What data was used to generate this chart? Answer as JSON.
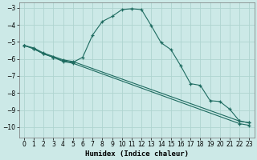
{
  "xlabel": "Humidex (Indice chaleur)",
  "background_color": "#cce9e7",
  "grid_color": "#afd4d0",
  "line_color": "#1e6b60",
  "xlim": [
    -0.5,
    23.5
  ],
  "ylim": [
    -10.6,
    -2.7
  ],
  "xticks": [
    0,
    1,
    2,
    3,
    4,
    5,
    6,
    7,
    8,
    9,
    10,
    11,
    12,
    13,
    14,
    15,
    16,
    17,
    18,
    19,
    20,
    21,
    22,
    23
  ],
  "yticks": [
    -10,
    -9,
    -8,
    -7,
    -6,
    -5,
    -4,
    -3
  ],
  "line1_x": [
    0,
    1,
    2,
    3,
    4,
    5,
    6,
    7,
    8,
    9,
    10,
    11,
    12,
    13,
    14,
    15,
    16,
    17,
    18,
    19,
    20,
    21,
    22,
    23
  ],
  "line1_y": [
    -5.2,
    -5.4,
    -5.7,
    -5.9,
    -6.1,
    -6.2,
    -5.9,
    -4.6,
    -3.8,
    -3.5,
    -3.1,
    -3.05,
    -3.1,
    -4.05,
    -5.05,
    -5.45,
    -6.4,
    -7.45,
    -7.55,
    -8.45,
    -8.5,
    -8.95,
    -9.65,
    -9.75
  ],
  "line2_x": [
    0,
    1,
    2,
    3,
    4,
    5,
    22,
    23
  ],
  "line2_y": [
    -5.2,
    -5.35,
    -5.65,
    -5.85,
    -6.05,
    -6.15,
    -9.65,
    -9.75
  ],
  "line3_x": [
    0,
    1,
    2,
    3,
    4,
    5,
    22,
    23
  ],
  "line3_y": [
    -5.2,
    -5.4,
    -5.7,
    -5.9,
    -6.15,
    -6.25,
    -9.8,
    -9.9
  ]
}
